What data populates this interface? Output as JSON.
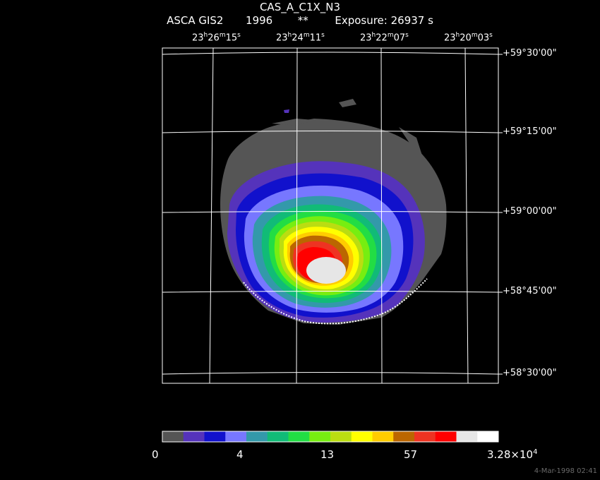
{
  "header": {
    "object_name": "CAS_A_C1X_N3",
    "instrument": "ASCA GIS2",
    "year": "1996",
    "flag": "**",
    "exposure": "Exposure: 26937 s"
  },
  "ra_labels": [
    {
      "h": "23",
      "m": "26",
      "s": "15"
    },
    {
      "h": "23",
      "m": "24",
      "s": "11"
    },
    {
      "h": "23",
      "m": "22",
      "s": "07"
    },
    {
      "h": "23",
      "m": "20",
      "s": "03"
    }
  ],
  "dec_labels": [
    "+59°30'00\"",
    "+59°15'00\"",
    "+59°00'00\"",
    "+58°45'00\"",
    "+58°30'00\""
  ],
  "colorbar": {
    "colors": [
      "#555555",
      "#5533bb",
      "#1111cc",
      "#7777ff",
      "#3399aa",
      "#11bb77",
      "#22dd44",
      "#77ee11",
      "#bbdd11",
      "#ffff00",
      "#ffcc00",
      "#bb6600",
      "#ee3322",
      "#ff0000",
      "#e6e6e6",
      "#ffffff"
    ],
    "tick_labels": [
      "0",
      "4",
      "13",
      "57"
    ],
    "max_label": {
      "base": "3.28×10",
      "exp": "4"
    }
  },
  "timestamp": "4-Mar-1998 02:41"
}
